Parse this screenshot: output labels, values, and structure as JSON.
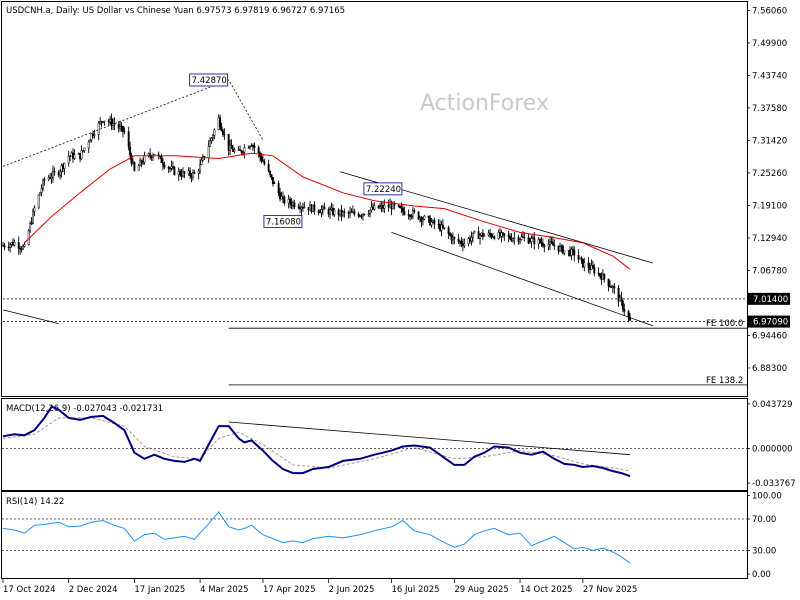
{
  "chart_data": {
    "type": "candlestick",
    "symbol_line": "USDCNH.a, Daily:  US Dollar vs Chinese Yuan  6.97573 6.97819 6.96727 6.97165",
    "watermark": "ActionForex",
    "x_ticks": [
      "17 Oct 2024",
      "2 Dec 2024",
      "17 Jan 2025",
      "4 Mar 2025",
      "17 Apr 2025",
      "2 Jun 2025",
      "16 Jul 2025",
      "29 Aug 2025",
      "14 Oct 2025",
      "27 Nov 2025"
    ],
    "main": {
      "y_ticks": [
        "7.56060",
        "7.49900",
        "7.43740",
        "7.37580",
        "7.31420",
        "7.25260",
        "7.19100",
        "7.12940",
        "7.06780",
        "6.94460",
        "6.88300"
      ],
      "ylim": [
        6.8318,
        7.5708
      ],
      "price_points": [
        [
          "2024-10-17",
          7.115
        ],
        [
          "2024-10-25",
          7.12
        ],
        [
          "2024-11-01",
          7.11
        ],
        [
          "2024-11-08",
          7.185
        ],
        [
          "2024-11-15",
          7.24
        ],
        [
          "2024-11-25",
          7.255
        ],
        [
          "2024-12-02",
          7.285
        ],
        [
          "2024-12-10",
          7.285
        ],
        [
          "2024-12-18",
          7.325
        ],
        [
          "2024-12-26",
          7.355
        ],
        [
          "2025-01-03",
          7.345
        ],
        [
          "2025-01-10",
          7.33
        ],
        [
          "2025-01-17",
          7.255
        ],
        [
          "2025-01-24",
          7.28
        ],
        [
          "2025-01-31",
          7.29
        ],
        [
          "2025-02-07",
          7.27
        ],
        [
          "2025-02-14",
          7.255
        ],
        [
          "2025-02-21",
          7.25
        ],
        [
          "2025-02-28",
          7.25
        ],
        [
          "2025-03-04",
          7.265
        ],
        [
          "2025-03-10",
          7.305
        ],
        [
          "2025-03-17",
          7.355
        ],
        [
          "2025-03-24",
          7.3
        ],
        [
          "2025-03-31",
          7.29
        ],
        [
          "2025-04-04",
          7.3
        ],
        [
          "2025-04-09",
          7.31
        ],
        [
          "2025-04-17",
          7.275
        ],
        [
          "2025-04-24",
          7.235
        ],
        [
          "2025-05-01",
          7.2
        ],
        [
          "2025-05-08",
          7.195
        ],
        [
          "2025-05-15",
          7.19
        ],
        [
          "2025-05-22",
          7.185
        ],
        [
          "2025-06-02",
          7.18
        ],
        [
          "2025-06-12",
          7.175
        ],
        [
          "2025-06-24",
          7.175
        ],
        [
          "2025-07-04",
          7.185
        ],
        [
          "2025-07-16",
          7.19
        ],
        [
          "2025-07-24",
          7.18
        ],
        [
          "2025-08-01",
          7.175
        ],
        [
          "2025-08-12",
          7.16
        ],
        [
          "2025-08-22",
          7.145
        ],
        [
          "2025-08-29",
          7.125
        ],
        [
          "2025-09-05",
          7.12
        ],
        [
          "2025-09-12",
          7.135
        ],
        [
          "2025-09-19",
          7.135
        ],
        [
          "2025-09-26",
          7.135
        ],
        [
          "2025-10-06",
          7.13
        ],
        [
          "2025-10-14",
          7.13
        ],
        [
          "2025-10-22",
          7.125
        ],
        [
          "2025-10-30",
          7.12
        ],
        [
          "2025-11-07",
          7.115
        ],
        [
          "2025-11-14",
          7.105
        ],
        [
          "2025-11-21",
          7.1
        ],
        [
          "2025-11-27",
          7.08
        ],
        [
          "2025-12-04",
          7.07
        ],
        [
          "2025-12-11",
          7.055
        ],
        [
          "2025-12-18",
          7.035
        ],
        [
          "2025-12-24",
          7.005
        ],
        [
          "2025-12-30",
          6.971
        ]
      ],
      "sma_points": [
        [
          "2024-11-01",
          7.12
        ],
        [
          "2024-11-20",
          7.17
        ],
        [
          "2024-12-10",
          7.215
        ],
        [
          "2024-12-31",
          7.26
        ],
        [
          "2025-01-17",
          7.285
        ],
        [
          "2025-02-15",
          7.285
        ],
        [
          "2025-03-17",
          7.28
        ],
        [
          "2025-04-09",
          7.29
        ],
        [
          "2025-04-24",
          7.285
        ],
        [
          "2025-05-15",
          7.245
        ],
        [
          "2025-06-12",
          7.215
        ],
        [
          "2025-07-04",
          7.2
        ],
        [
          "2025-08-01",
          7.19
        ],
        [
          "2025-08-22",
          7.185
        ],
        [
          "2025-09-19",
          7.16
        ],
        [
          "2025-10-14",
          7.14
        ],
        [
          "2025-11-07",
          7.13
        ],
        [
          "2025-11-27",
          7.12
        ],
        [
          "2025-12-18",
          7.095
        ],
        [
          "2025-12-30",
          7.07
        ]
      ],
      "markers": [
        {
          "date": "2025-03-24",
          "value": 7.4287,
          "label": "7.42870"
        },
        {
          "date": "2025-05-15",
          "value": 7.1608,
          "label": "7.16080"
        },
        {
          "date": "2025-07-24",
          "value": 7.2224,
          "label": "7.22240"
        }
      ],
      "dotted_trend": [
        [
          "2024-10-17",
          7.265
        ],
        [
          "2025-03-24",
          7.4287
        ],
        [
          "2025-04-17",
          7.315
        ]
      ],
      "channel_upper": [
        [
          "2025-06-10",
          7.255
        ],
        [
          "2026-01-15",
          7.082
        ]
      ],
      "channel_lower": [
        [
          "2025-07-16",
          7.14
        ],
        [
          "2026-01-15",
          6.963
        ]
      ],
      "left_line": [
        [
          "2024-10-17",
          6.993
        ],
        [
          "2024-11-25",
          6.967
        ]
      ],
      "levels": [
        {
          "value": 7.014,
          "label": "7.01400",
          "style": "dotted",
          "tag_color": "#ffffff"
        },
        {
          "value": 6.9709,
          "label": "6.97090",
          "style": "dotted",
          "tag_color": "#ffffff"
        }
      ],
      "fe_levels": [
        {
          "value": 6.9584,
          "label": "FE 100.0",
          "start": "2025-03-24"
        },
        {
          "value": 6.851,
          "label": "FE 138.2",
          "start": "2025-03-24"
        }
      ]
    },
    "macd": {
      "label": "MACD(12,26,9) -0.027043 -0.021731",
      "y_ticks": [
        "0.043729",
        "0.000000",
        "-0.033767"
      ],
      "ylim": [
        -0.0405,
        0.0475
      ],
      "macd_points": [
        [
          "2024-10-17",
          0.012
        ],
        [
          "2024-10-25",
          0.014
        ],
        [
          "2024-11-01",
          0.013
        ],
        [
          "2024-11-08",
          0.018
        ],
        [
          "2024-11-15",
          0.03
        ],
        [
          "2024-11-20",
          0.041
        ],
        [
          "2024-11-25",
          0.038
        ],
        [
          "2024-12-02",
          0.03
        ],
        [
          "2024-12-10",
          0.028
        ],
        [
          "2024-12-18",
          0.031
        ],
        [
          "2024-12-26",
          0.032
        ],
        [
          "2025-01-03",
          0.025
        ],
        [
          "2025-01-10",
          0.018
        ],
        [
          "2025-01-17",
          -0.004
        ],
        [
          "2025-01-24",
          -0.01
        ],
        [
          "2025-01-31",
          -0.006
        ],
        [
          "2025-02-07",
          -0.01
        ],
        [
          "2025-02-14",
          -0.012
        ],
        [
          "2025-02-21",
          -0.013
        ],
        [
          "2025-02-28",
          -0.01
        ],
        [
          "2025-03-04",
          -0.012
        ],
        [
          "2025-03-10",
          0.004
        ],
        [
          "2025-03-17",
          0.022
        ],
        [
          "2025-03-24",
          0.022
        ],
        [
          "2025-03-31",
          0.01
        ],
        [
          "2025-04-04",
          0.006
        ],
        [
          "2025-04-09",
          0.008
        ],
        [
          "2025-04-17",
          -0.002
        ],
        [
          "2025-04-24",
          -0.012
        ],
        [
          "2025-05-01",
          -0.02
        ],
        [
          "2025-05-08",
          -0.024
        ],
        [
          "2025-05-15",
          -0.024
        ],
        [
          "2025-05-22",
          -0.02
        ],
        [
          "2025-06-02",
          -0.018
        ],
        [
          "2025-06-12",
          -0.012
        ],
        [
          "2025-06-24",
          -0.01
        ],
        [
          "2025-07-04",
          -0.006
        ],
        [
          "2025-07-16",
          -0.002
        ],
        [
          "2025-07-24",
          0.002
        ],
        [
          "2025-08-01",
          0.003
        ],
        [
          "2025-08-12",
          0.001
        ],
        [
          "2025-08-22",
          -0.009
        ],
        [
          "2025-08-29",
          -0.016
        ],
        [
          "2025-09-05",
          -0.016
        ],
        [
          "2025-09-12",
          -0.008
        ],
        [
          "2025-09-19",
          -0.004
        ],
        [
          "2025-09-26",
          0.002
        ],
        [
          "2025-10-06",
          0.001
        ],
        [
          "2025-10-14",
          -0.004
        ],
        [
          "2025-10-22",
          -0.006
        ],
        [
          "2025-10-30",
          -0.003
        ],
        [
          "2025-11-07",
          -0.01
        ],
        [
          "2025-11-14",
          -0.015
        ],
        [
          "2025-11-21",
          -0.016
        ],
        [
          "2025-11-27",
          -0.018
        ],
        [
          "2025-12-04",
          -0.017
        ],
        [
          "2025-12-11",
          -0.019
        ],
        [
          "2025-12-18",
          -0.022
        ],
        [
          "2025-12-24",
          -0.024
        ],
        [
          "2025-12-30",
          -0.027
        ]
      ],
      "signal_points": [
        [
          "2024-10-17",
          0.01
        ],
        [
          "2024-11-08",
          0.014
        ],
        [
          "2024-11-25",
          0.03
        ],
        [
          "2024-12-18",
          0.03
        ],
        [
          "2025-01-10",
          0.022
        ],
        [
          "2025-01-24",
          0.002
        ],
        [
          "2025-02-14",
          -0.008
        ],
        [
          "2025-03-04",
          -0.01
        ],
        [
          "2025-03-17",
          0.01
        ],
        [
          "2025-03-31",
          0.016
        ],
        [
          "2025-04-17",
          0.004
        ],
        [
          "2025-05-08",
          -0.016
        ],
        [
          "2025-06-02",
          -0.019
        ],
        [
          "2025-07-04",
          -0.01
        ],
        [
          "2025-08-01",
          0.001
        ],
        [
          "2025-08-29",
          -0.01
        ],
        [
          "2025-09-19",
          -0.008
        ],
        [
          "2025-10-14",
          -0.002
        ],
        [
          "2025-11-07",
          -0.007
        ],
        [
          "2025-11-27",
          -0.015
        ],
        [
          "2025-12-18",
          -0.019
        ],
        [
          "2025-12-30",
          -0.022
        ]
      ],
      "trendline": [
        [
          "2025-03-24",
          0.026
        ],
        [
          "2025-12-30",
          -0.006
        ]
      ]
    },
    "rsi": {
      "label": "RSI(14) 14.22",
      "y_ticks": [
        "100.00",
        "70.00",
        "30.00",
        "0.00"
      ],
      "ylim": [
        -5,
        103
      ],
      "levels": [
        70,
        30
      ],
      "points": [
        [
          "2024-10-17",
          58
        ],
        [
          "2024-10-25",
          56
        ],
        [
          "2024-11-01",
          52
        ],
        [
          "2024-11-08",
          62
        ],
        [
          "2024-11-15",
          63
        ],
        [
          "2024-11-25",
          66
        ],
        [
          "2024-12-02",
          60
        ],
        [
          "2024-12-10",
          61
        ],
        [
          "2024-12-18",
          66
        ],
        [
          "2024-12-26",
          68
        ],
        [
          "2025-01-03",
          62
        ],
        [
          "2025-01-10",
          58
        ],
        [
          "2025-01-17",
          42
        ],
        [
          "2025-01-24",
          50
        ],
        [
          "2025-01-31",
          52
        ],
        [
          "2025-02-07",
          44
        ],
        [
          "2025-02-14",
          46
        ],
        [
          "2025-02-21",
          48
        ],
        [
          "2025-02-28",
          44
        ],
        [
          "2025-03-04",
          52
        ],
        [
          "2025-03-10",
          64
        ],
        [
          "2025-03-17",
          79
        ],
        [
          "2025-03-24",
          60
        ],
        [
          "2025-03-31",
          56
        ],
        [
          "2025-04-04",
          58
        ],
        [
          "2025-04-09",
          62
        ],
        [
          "2025-04-17",
          50
        ],
        [
          "2025-04-24",
          45
        ],
        [
          "2025-05-01",
          40
        ],
        [
          "2025-05-08",
          42
        ],
        [
          "2025-05-15",
          40
        ],
        [
          "2025-05-22",
          45
        ],
        [
          "2025-06-02",
          48
        ],
        [
          "2025-06-12",
          46
        ],
        [
          "2025-06-24",
          50
        ],
        [
          "2025-07-04",
          55
        ],
        [
          "2025-07-16",
          60
        ],
        [
          "2025-07-24",
          68
        ],
        [
          "2025-08-01",
          55
        ],
        [
          "2025-08-12",
          50
        ],
        [
          "2025-08-22",
          40
        ],
        [
          "2025-08-29",
          34
        ],
        [
          "2025-09-05",
          38
        ],
        [
          "2025-09-12",
          50
        ],
        [
          "2025-09-19",
          55
        ],
        [
          "2025-09-26",
          58
        ],
        [
          "2025-10-06",
          50
        ],
        [
          "2025-10-14",
          52
        ],
        [
          "2025-10-22",
          36
        ],
        [
          "2025-10-30",
          42
        ],
        [
          "2025-11-07",
          48
        ],
        [
          "2025-11-14",
          40
        ],
        [
          "2025-11-21",
          32
        ],
        [
          "2025-11-27",
          34
        ],
        [
          "2025-12-04",
          30
        ],
        [
          "2025-12-11",
          33
        ],
        [
          "2025-12-18",
          28
        ],
        [
          "2025-12-24",
          22
        ],
        [
          "2025-12-30",
          14
        ]
      ]
    },
    "colors": {
      "candle": "#000000",
      "sma": "#e00000",
      "macd": "#000080",
      "signal": "#b09090",
      "rsi": "#1e90ff",
      "grid": "#000000",
      "watermark": "#c8c8c8"
    }
  }
}
